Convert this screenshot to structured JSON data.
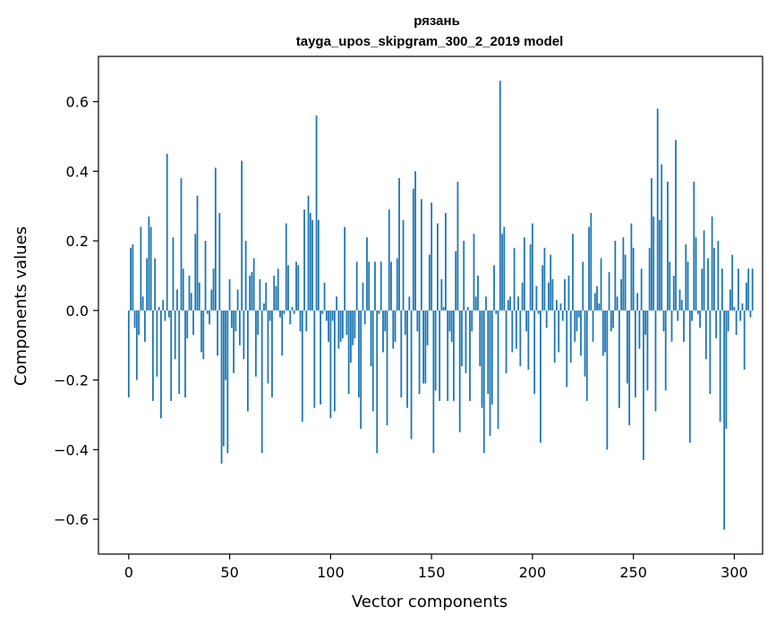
{
  "chart_data": {
    "type": "bar",
    "title": "рязань",
    "subtitle": "tayga_upos_skipgram_300_2_2019 model",
    "xlabel": "Vector components",
    "ylabel": "Components values",
    "xlim": [
      -15,
      314
    ],
    "ylim": [
      -0.7,
      0.73
    ],
    "x_ticks": [
      0,
      50,
      100,
      150,
      200,
      250,
      300
    ],
    "x_tick_labels": [
      "0",
      "50",
      "100",
      "150",
      "200",
      "250",
      "300"
    ],
    "y_ticks": [
      -0.6,
      -0.4,
      -0.2,
      0.0,
      0.2,
      0.4,
      0.6
    ],
    "y_tick_labels": [
      "−0.6",
      "−0.4",
      "−0.2",
      "0.0",
      "0.2",
      "0.4",
      "0.6"
    ],
    "grid": false,
    "bar_color": "#1f77b4",
    "values": [
      -0.25,
      0.18,
      0.19,
      -0.05,
      -0.2,
      -0.07,
      0.24,
      0.04,
      -0.09,
      0.15,
      0.27,
      0.24,
      -0.26,
      0.15,
      -0.19,
      0.01,
      -0.31,
      0.03,
      -0.03,
      0.45,
      -0.02,
      -0.26,
      0.21,
      -0.14,
      0.06,
      -0.24,
      0.38,
      0.12,
      -0.25,
      -0.08,
      0.1,
      0.05,
      -0.07,
      0.22,
      0.33,
      0.08,
      -0.12,
      -0.14,
      0.2,
      -0.01,
      -0.04,
      0.06,
      0.12,
      0.41,
      -0.13,
      0.28,
      -0.44,
      -0.39,
      -0.2,
      -0.41,
      0.09,
      -0.05,
      -0.18,
      -0.06,
      0.06,
      -0.1,
      0.43,
      -0.14,
      0.2,
      -0.29,
      0.1,
      0.11,
      0.15,
      -0.19,
      -0.07,
      0.09,
      -0.41,
      0.02,
      0.08,
      -0.21,
      -0.03,
      -0.25,
      0.1,
      0.07,
      0.12,
      -0.02,
      -0.13,
      -0.01,
      0.25,
      0.13,
      -0.04,
      0.01,
      -0.01,
      0.14,
      0.13,
      -0.06,
      -0.32,
      0.29,
      -0.06,
      0.33,
      0.28,
      0.26,
      -0.28,
      0.56,
      0.26,
      -0.27,
      -0.01,
      0.08,
      -0.03,
      -0.09,
      -0.31,
      -0.03,
      -0.29,
      0.04,
      -0.11,
      -0.09,
      -0.08,
      0.24,
      -0.07,
      -0.24,
      -0.15,
      -0.1,
      -0.08,
      0.14,
      -0.25,
      -0.34,
      0.08,
      -0.04,
      0.21,
      0.14,
      -0.16,
      -0.29,
      0.14,
      -0.41,
      -0.01,
      0.14,
      -0.12,
      -0.06,
      -0.33,
      0.29,
      0.14,
      -0.11,
      -0.09,
      0.15,
      0.38,
      -0.25,
      0.26,
      -0.07,
      -0.28,
      0.04,
      -0.37,
      0.35,
      0.4,
      -0.06,
      -0.24,
      0.32,
      -0.21,
      -0.21,
      -0.1,
      0.16,
      0.31,
      -0.41,
      -0.23,
      0.25,
      -0.26,
      0.09,
      0.01,
      0.28,
      -0.26,
      -0.06,
      -0.09,
      -0.26,
      0.17,
      0.37,
      -0.35,
      -0.16,
      0.2,
      -0.18,
      0.01,
      -0.26,
      -0.06,
      0.22,
      0.04,
      0.1,
      -0.16,
      -0.28,
      -0.41,
      0.04,
      -0.24,
      -0.36,
      -0.27,
      0.13,
      -0.01,
      -0.34,
      0.66,
      0.22,
      0.24,
      -0.18,
      0.03,
      0.04,
      -0.12,
      0.18,
      -0.11,
      0.04,
      -0.16,
      0.08,
      0.21,
      -0.06,
      -0.17,
      0.19,
      0.25,
      -0.24,
      0.07,
      -0.01,
      -0.38,
      0.13,
      0.18,
      -0.05,
      0.08,
      0.16,
      0.09,
      -0.15,
      0.03,
      -0.12,
      0.02,
      -0.03,
      0.09,
      -0.22,
      0.1,
      -0.15,
      0.22,
      -0.09,
      -0.06,
      -0.02,
      -0.13,
      0.14,
      -0.19,
      -0.26,
      0.24,
      0.28,
      -0.09,
      0.05,
      0.07,
      0.02,
      0.15,
      -0.13,
      -0.12,
      -0.4,
      0.11,
      -0.06,
      -0.05,
      0.2,
      0.04,
      -0.28,
      0.09,
      0.21,
      0.16,
      -0.21,
      -0.33,
      0.25,
      0.18,
      -0.25,
      0.05,
      -0.11,
      0.12,
      -0.43,
      -0.07,
      -0.23,
      0.18,
      0.38,
      0.27,
      -0.29,
      0.58,
      0.26,
      0.42,
      -0.06,
      -0.23,
      0.37,
      0.14,
      -0.09,
      0.1,
      0.49,
      -0.03,
      0.06,
      0.03,
      -0.09,
      0.19,
      0.14,
      -0.38,
      -0.03,
      0.37,
      0.21,
      -0.01,
      -0.05,
      0.12,
      0.23,
      -0.14,
      0.15,
      -0.24,
      0.27,
      0.18,
      -0.08,
      0.2,
      -0.32,
      0.12,
      -0.63,
      -0.34,
      -0.06,
      0.06,
      0.16,
      0.01,
      -0.07,
      0.12,
      -0.03,
      0.02,
      -0.17,
      0.08,
      0.12,
      -0.02,
      0.12
    ]
  }
}
